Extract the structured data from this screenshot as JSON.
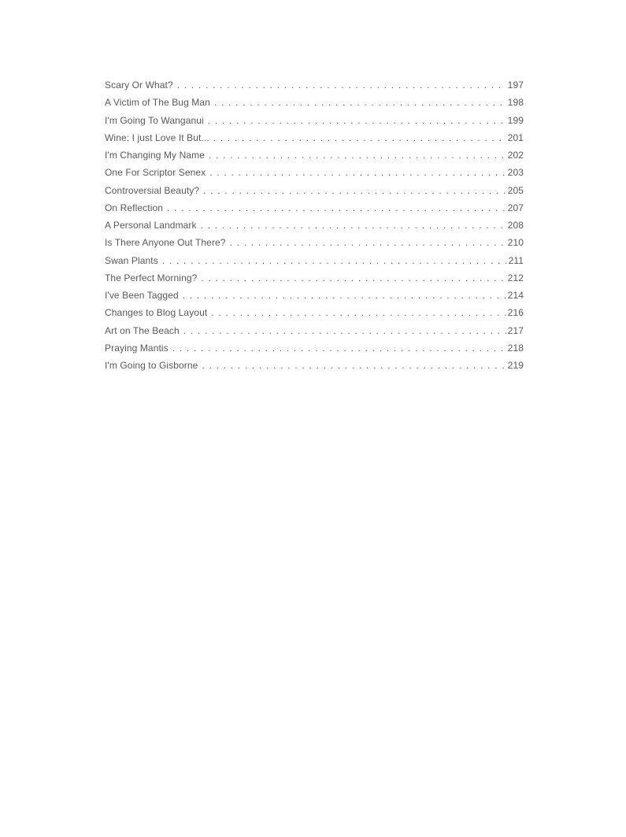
{
  "page": {
    "background_color": "#ffffff",
    "text_color": "#58585a"
  },
  "toc": {
    "entries": [
      {
        "title": "Scary Or What?",
        "page": "197"
      },
      {
        "title": "A Victim of The Bug Man",
        "page": "198"
      },
      {
        "title": "I'm Going To Wanganui",
        "page": "199"
      },
      {
        "title": "Wine: I just Love It But...",
        "page": "201"
      },
      {
        "title": "I'm Changing My Name",
        "page": "202"
      },
      {
        "title": "One For Scriptor Senex",
        "page": "203"
      },
      {
        "title": "Controversial Beauty?",
        "page": "205"
      },
      {
        "title": "On Reflection",
        "page": "207"
      },
      {
        "title": "A Personal Landmark",
        "page": "208"
      },
      {
        "title": "Is There Anyone Out There?",
        "page": "210"
      },
      {
        "title": "Swan Plants",
        "page": "211"
      },
      {
        "title": "The Perfect Morning?",
        "page": "212"
      },
      {
        "title": "I've Been Tagged",
        "page": "214"
      },
      {
        "title": "Changes to Blog Layout",
        "page": "216"
      },
      {
        "title": "Art on The Beach",
        "page": "217"
      },
      {
        "title": "Praying Mantis",
        "page": "218"
      },
      {
        "title": "I'm Going to Gisborne",
        "page": "219"
      }
    ]
  }
}
